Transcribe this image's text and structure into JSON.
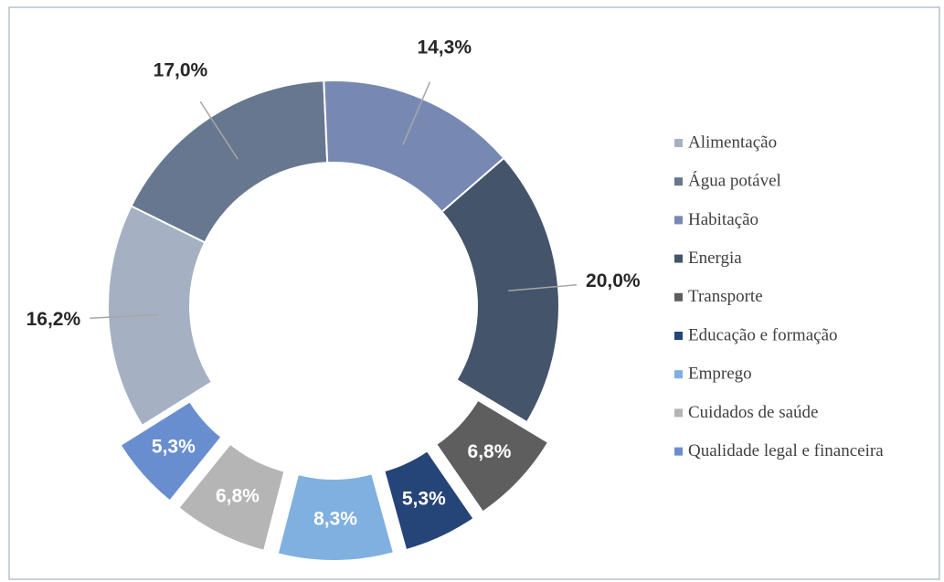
{
  "chart_data": {
    "type": "donut",
    "categories": [
      "Alimentação",
      "Água potável",
      "Habitação",
      "Energia",
      "Transporte",
      "Educação e formação",
      "Emprego",
      "Cuidados de saúde",
      "Qualidade legal e financeira"
    ],
    "values": [
      16.2,
      17.0,
      14.3,
      20.0,
      6.8,
      5.3,
      8.3,
      6.8,
      5.3
    ],
    "value_labels": [
      "16,2%",
      "17,0%",
      "14,3%",
      "20,0%",
      "6,8%",
      "5,3%",
      "8,3%",
      "6,8%",
      "5,3%"
    ],
    "colors": [
      "#a5b0c2",
      "#67778f",
      "#7789b3",
      "#44546a",
      "#5e5e5e",
      "#254478",
      "#7fb0e0",
      "#b5b5b5",
      "#698ed0"
    ],
    "legend": "right"
  }
}
